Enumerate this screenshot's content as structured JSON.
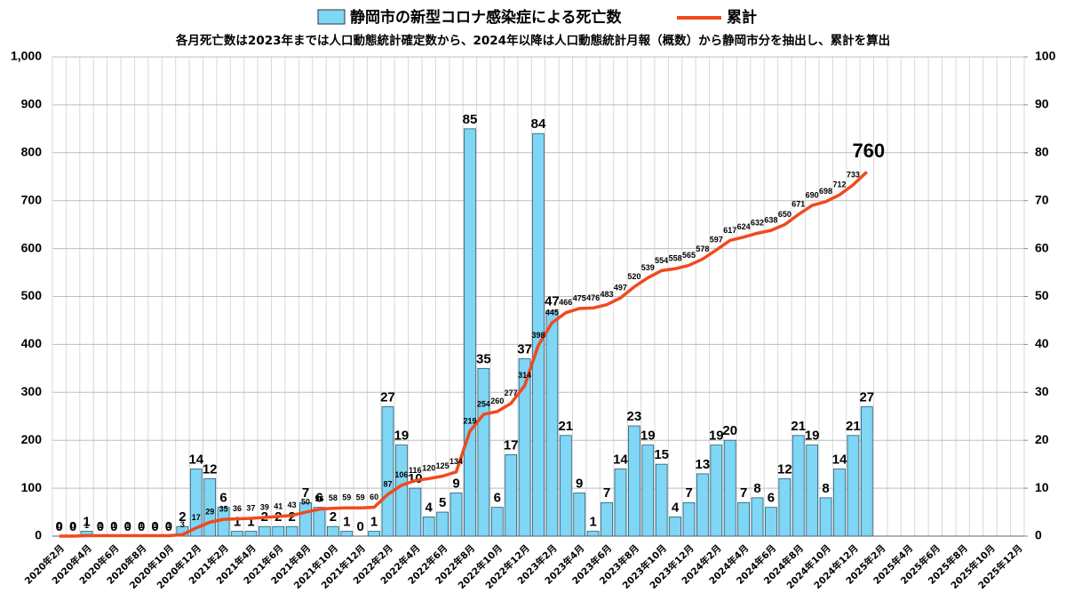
{
  "chart_data": {
    "type": "bar",
    "legend_title": null,
    "subtitle": "各月死亡数は2023年までは人口動態統計確定数から、2024年以降は人口動態統計月報（概数）から静岡市分を抽出し、累計を算出",
    "categories": [
      "2020年2月",
      null,
      "2020年4月",
      null,
      "2020年6月",
      null,
      "2020年8月",
      null,
      "2020年10月",
      null,
      "2020年12月",
      null,
      "2021年2月",
      null,
      "2021年4月",
      null,
      "2021年6月",
      null,
      "2021年8月",
      null,
      "2021年10月",
      null,
      "2021年12月",
      null,
      "2022年2月",
      null,
      "2022年4月",
      null,
      "2022年6月",
      null,
      "2022年8月",
      null,
      "2022年10月",
      null,
      "2022年12月",
      null,
      "2023年2月",
      null,
      "2023年4月",
      null,
      "2023年6月",
      null,
      "2023年8月",
      null,
      "2023年10月",
      null,
      "2023年12月",
      null,
      "2024年2月",
      null,
      "2024年4月",
      null,
      "2024年6月",
      null,
      "2024年8月",
      null,
      "2024年10月",
      null,
      "2024年12月",
      null,
      "2025年2月",
      null,
      "2025年4月",
      null,
      "2025年6月",
      null,
      "2025年8月",
      null,
      "2025年10月",
      null,
      "2025年12月"
    ],
    "series": [
      {
        "name": "静岡市の新型コロナ感染症による死亡数",
        "type": "bar",
        "color": "#7fd6f5",
        "axis": "y2",
        "values": [
          0,
          0,
          1,
          0,
          0,
          0,
          0,
          0,
          0,
          2,
          14,
          12,
          6,
          1,
          1,
          2,
          2,
          2,
          7,
          6,
          2,
          1,
          0,
          1,
          27,
          19,
          10,
          4,
          5,
          9,
          85,
          35,
          6,
          17,
          37,
          84,
          47,
          21,
          9,
          1,
          7,
          14,
          23,
          19,
          15,
          4,
          7,
          13,
          19,
          20,
          7,
          8,
          6,
          12,
          21,
          19,
          8,
          14,
          21,
          27,
          null,
          null,
          null,
          null,
          null,
          null,
          null,
          null,
          null,
          null,
          null
        ]
      },
      {
        "name": "累計",
        "type": "line",
        "color": "#f04a1e",
        "values": [
          0,
          0,
          1,
          1,
          1,
          1,
          1,
          1,
          1,
          3,
          17,
          29,
          35,
          36,
          37,
          39,
          41,
          43,
          50,
          56,
          58,
          59,
          59,
          60,
          87,
          106,
          116,
          120,
          125,
          134,
          219,
          254,
          260,
          277,
          314,
          398,
          445,
          466,
          475,
          476,
          483,
          497,
          520,
          539,
          554,
          558,
          565,
          578,
          597,
          617,
          624,
          632,
          638,
          650,
          671,
          690,
          698,
          712,
          733,
          760,
          null,
          null,
          null,
          null,
          null,
          null,
          null,
          null,
          null,
          null,
          null
        ]
      }
    ],
    "ylim": [
      0,
      1000
    ],
    "yticks": [
      0,
      100,
      200,
      300,
      400,
      500,
      600,
      700,
      800,
      900,
      {
        "value": 1000,
        "label": "1,000"
      }
    ],
    "y2lim": [
      0,
      100
    ],
    "y2ticks": [
      0,
      10,
      20,
      30,
      40,
      50,
      60,
      70,
      80,
      90,
      100
    ],
    "grid": true
  }
}
